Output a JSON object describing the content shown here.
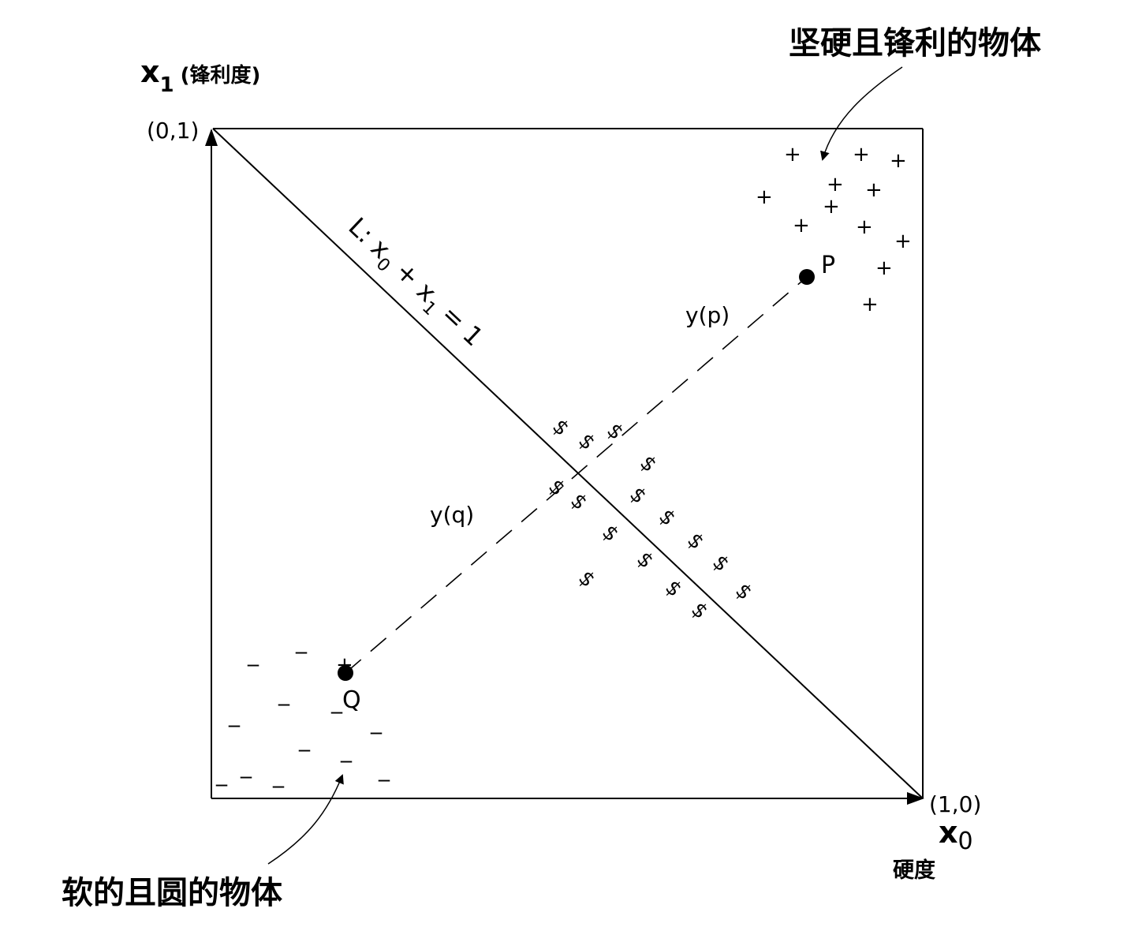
{
  "labels": {
    "top_right_caption": "坚硬且锋利的物体",
    "bottom_left_caption": "软的且圆的物体",
    "y_axis_var": "x",
    "y_axis_sub": "1",
    "y_axis_name": "(锋利度)",
    "x_axis_var": "x",
    "x_axis_sub": "0",
    "x_axis_name": "硬度",
    "corner_top": "(0,1)",
    "corner_right": "(1,0)",
    "line_L_prefix": "L: x",
    "line_L_sub0": "0",
    "line_L_mid": " + x",
    "line_L_sub1": "1",
    "line_L_suffix": " = 1",
    "point_p": "P",
    "point_q": "Q",
    "proj_p": "y(p)",
    "proj_q": "y(q)"
  },
  "symbols": {
    "plus": "+",
    "minus": "_",
    "dollar": "$"
  },
  "colors": {
    "ink": "#000000",
    "background": "#ffffff"
  }
}
